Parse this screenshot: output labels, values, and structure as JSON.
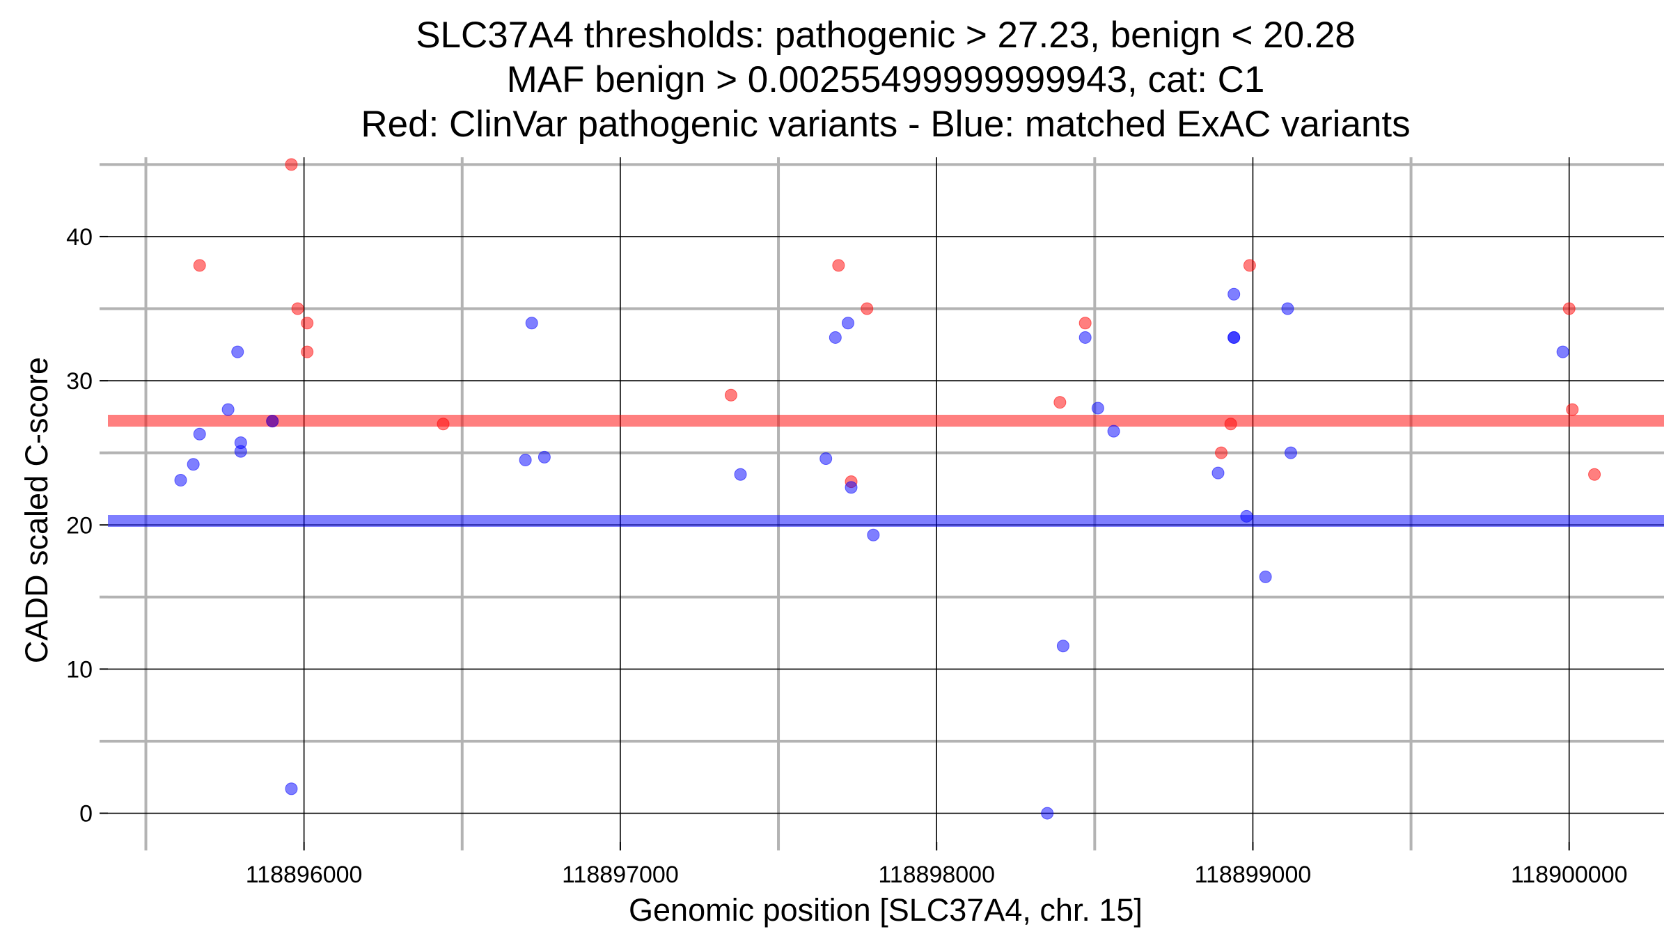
{
  "chart_data": {
    "type": "scatter",
    "title_lines": [
      "SLC37A4 thresholds: pathogenic > 27.23, benign < 20.28",
      "MAF benign > 0.00255499999999943, cat: C1",
      "Red: ClinVar pathogenic variants - Blue: matched ExAC variants"
    ],
    "xlabel": "Genomic position [SLC37A4, chr. 15]",
    "ylabel": "CADD scaled C-score",
    "xlim": [
      118895380,
      118900300
    ],
    "ylim": [
      -2,
      45.5
    ],
    "x_ticks": [
      118896000,
      118897000,
      118898000,
      118899000,
      118900000
    ],
    "x_tick_labels": [
      "118896000",
      "118897000",
      "118898000",
      "118899000",
      "118900000"
    ],
    "x_minor": [
      118895500,
      118896500,
      118897500,
      118898500,
      118899500
    ],
    "y_ticks": [
      0,
      10,
      20,
      30,
      40
    ],
    "y_tick_labels": [
      "0",
      "10",
      "20",
      "30",
      "40"
    ],
    "y_minor": [
      5,
      15,
      25,
      35,
      45
    ],
    "grid": true,
    "thresholds": [
      {
        "name": "pathogenic threshold",
        "value": 27.23,
        "color": "#ff0000"
      },
      {
        "name": "benign threshold",
        "value": 20.28,
        "color": "#0000ff"
      }
    ],
    "series": [
      {
        "name": "ClinVar pathogenic variants",
        "color": "#ff0000",
        "points": [
          [
            118895670,
            38.0
          ],
          [
            118895900,
            27.2
          ],
          [
            118895960,
            45.0
          ],
          [
            118895980,
            35.0
          ],
          [
            118896010,
            34.0
          ],
          [
            118896010,
            32.0
          ],
          [
            118896440,
            27.0
          ],
          [
            118897350,
            29.0
          ],
          [
            118897690,
            38.0
          ],
          [
            118897730,
            23.0
          ],
          [
            118897780,
            35.0
          ],
          [
            118898390,
            28.5
          ],
          [
            118898470,
            34.0
          ],
          [
            118898900,
            25.0
          ],
          [
            118898930,
            27.0
          ],
          [
            118898990,
            38.0
          ],
          [
            118900000,
            35.0
          ],
          [
            118900010,
            28.0
          ],
          [
            118900080,
            23.5
          ]
        ]
      },
      {
        "name": "matched ExAC variants",
        "color": "#0000ff",
        "points": [
          [
            118895610,
            23.1
          ],
          [
            118895650,
            24.2
          ],
          [
            118895670,
            26.3
          ],
          [
            118895760,
            28.0
          ],
          [
            118895790,
            32.0
          ],
          [
            118895800,
            25.7
          ],
          [
            118895800,
            25.1
          ],
          [
            118895900,
            27.2
          ],
          [
            118895960,
            1.7
          ],
          [
            118896700,
            24.5
          ],
          [
            118896720,
            34.0
          ],
          [
            118896760,
            24.7
          ],
          [
            118897380,
            23.5
          ],
          [
            118897650,
            24.6
          ],
          [
            118897680,
            33.0
          ],
          [
            118897720,
            34.0
          ],
          [
            118897730,
            22.6
          ],
          [
            118897800,
            19.3
          ],
          [
            118898350,
            0.0
          ],
          [
            118898400,
            11.6
          ],
          [
            118898470,
            33.0
          ],
          [
            118898510,
            28.1
          ],
          [
            118898560,
            26.5
          ],
          [
            118898890,
            23.6
          ],
          [
            118898940,
            36.0
          ],
          [
            118898940,
            33.0
          ],
          [
            118898940,
            33.0
          ],
          [
            118898980,
            20.6
          ],
          [
            118899040,
            16.4
          ],
          [
            118899110,
            35.0
          ],
          [
            118899120,
            25.0
          ],
          [
            118899980,
            32.0
          ]
        ]
      }
    ]
  }
}
